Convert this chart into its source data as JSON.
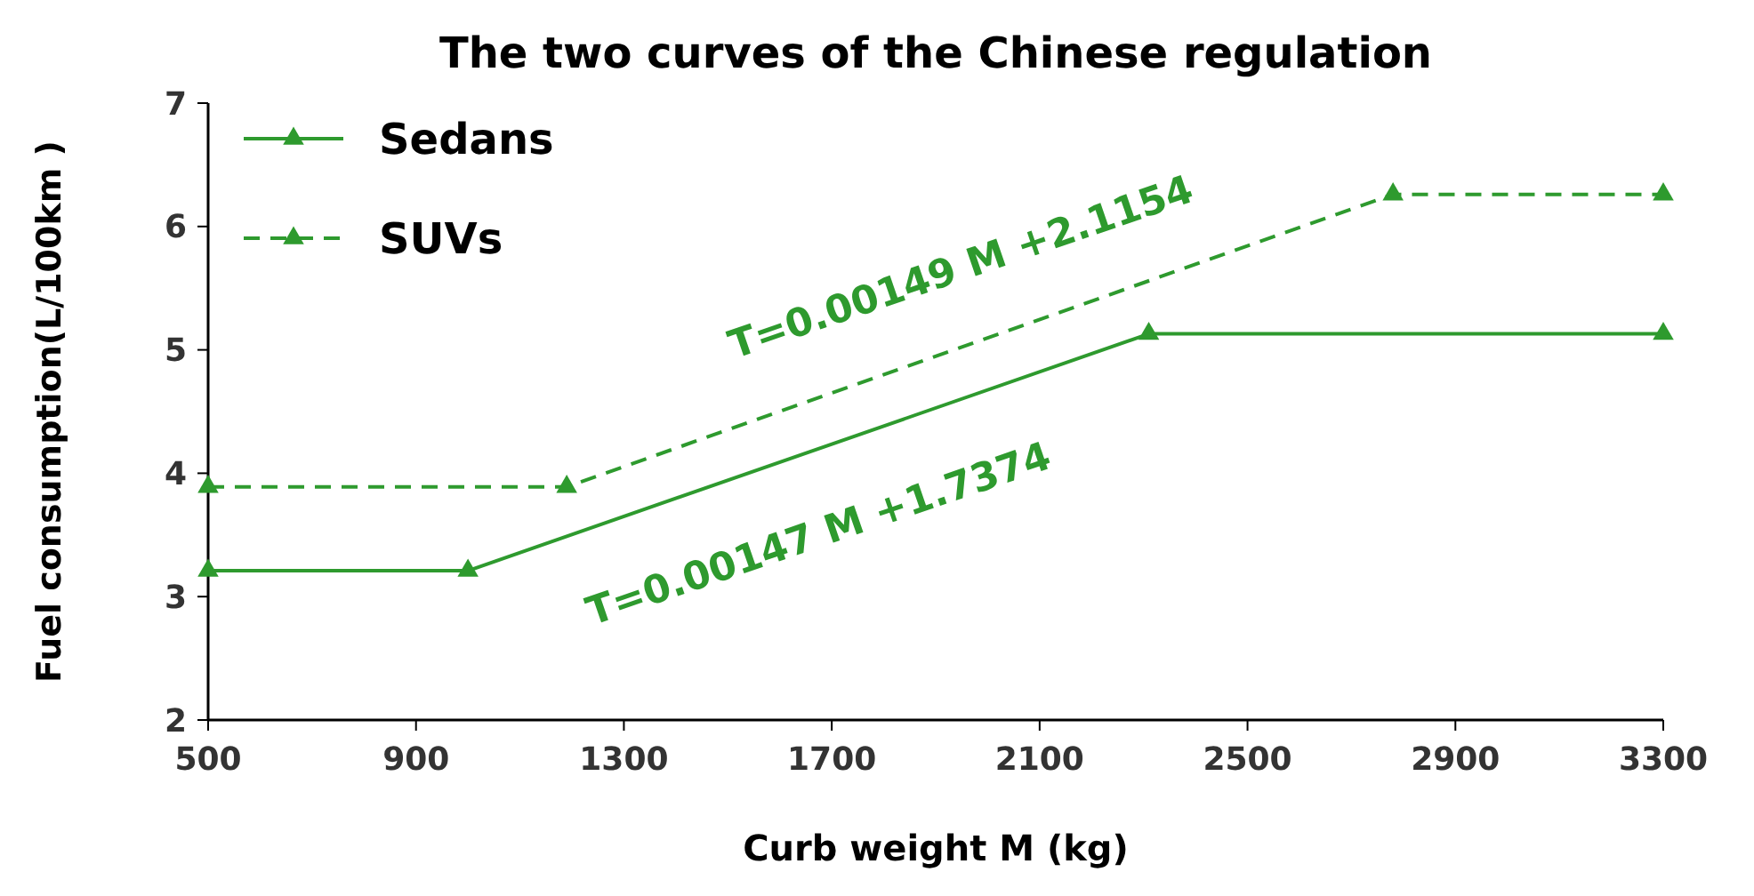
{
  "chart_data": {
    "type": "line",
    "title": "The two curves of the Chinese regulation",
    "xlabel": "Curb weight M (kg)",
    "ylabel": "Fuel consumption(L/100km )",
    "xlim": [
      500,
      3300
    ],
    "xticks": [
      500,
      900,
      1300,
      1700,
      2100,
      2500,
      2900,
      3300
    ],
    "ylim": [
      2,
      7
    ],
    "yticks": [
      2,
      3,
      4,
      5,
      6,
      7
    ],
    "grid": false,
    "legend": "top left",
    "marker": "triangle",
    "series": [
      {
        "name": "Sedans",
        "color": "#2e9a2e",
        "line_style": "solid",
        "x": [
          500,
          1000,
          2310,
          3300
        ],
        "values": [
          3.21,
          3.21,
          5.13,
          5.13
        ]
      },
      {
        "name": "SUVs",
        "color": "#2e9a2e",
        "line_style": "dashed",
        "x": [
          500,
          1190,
          2780,
          3300
        ],
        "values": [
          3.89,
          3.89,
          6.26,
          6.26
        ]
      }
    ],
    "annotations": [
      "T=0.00149 M +2.1154",
      "T=0.00147 M +1.7374"
    ]
  }
}
